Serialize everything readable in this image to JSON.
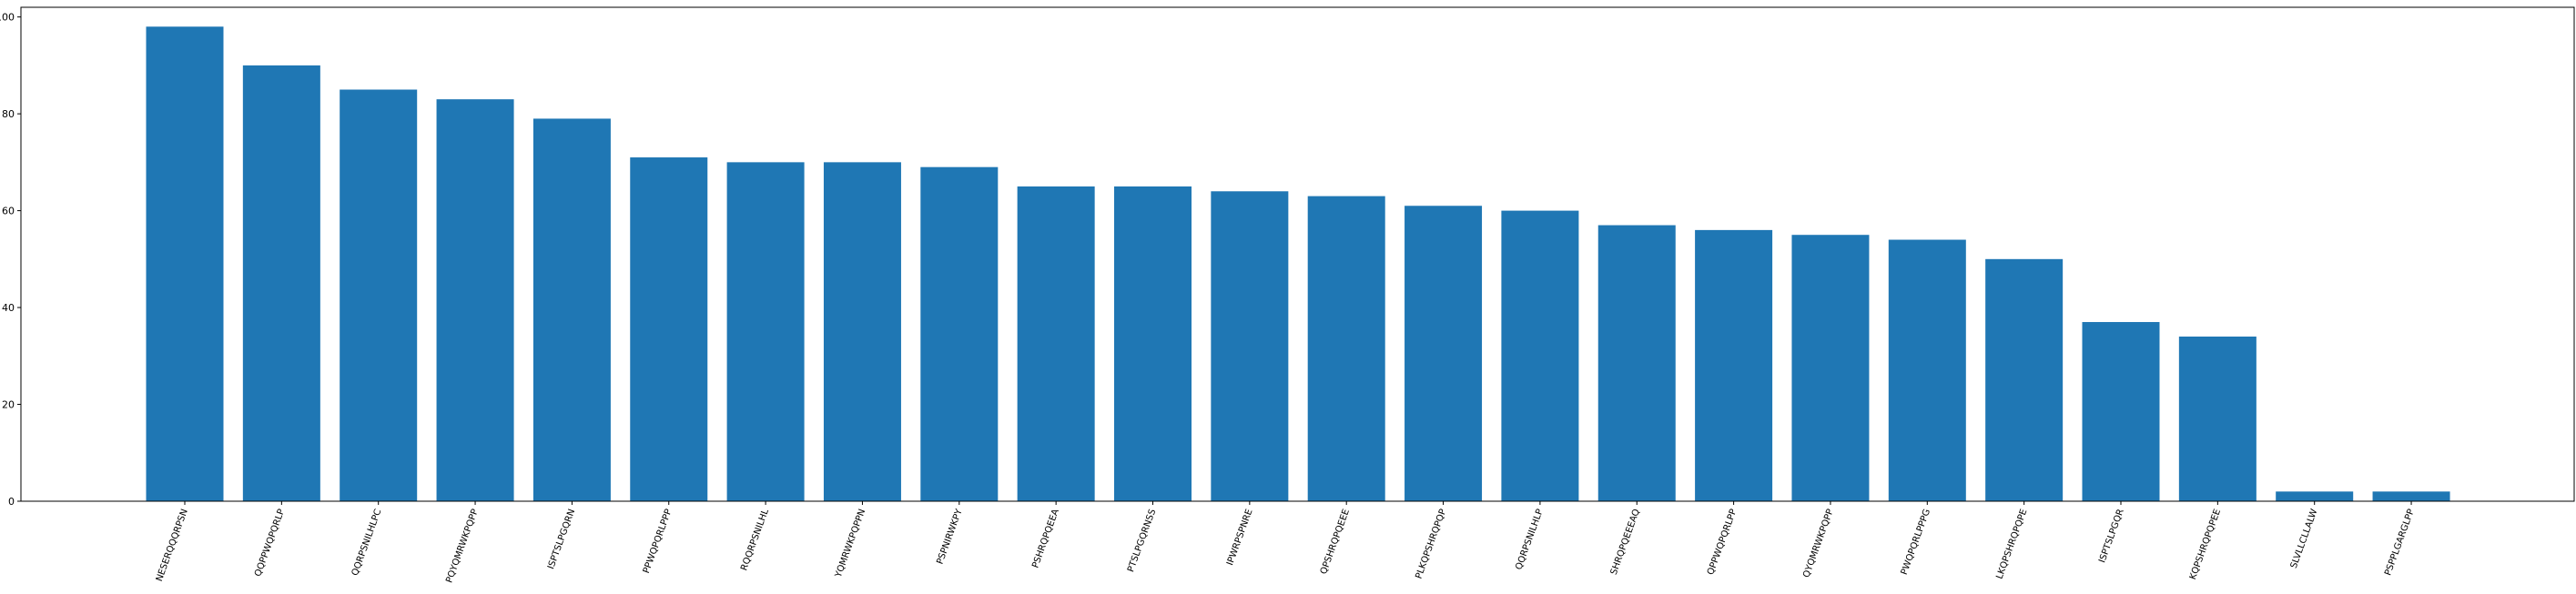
{
  "chart_data": {
    "type": "bar",
    "title": "",
    "xlabel": "",
    "ylabel": "",
    "ylim": [
      0,
      102
    ],
    "yticks": [
      0,
      20,
      40,
      60,
      80,
      100
    ],
    "grid": false,
    "bar_color": "#1f77b4",
    "categories": [
      "NESERQQQRPSN",
      "QQPPWQPQRLP",
      "QQRPSNILHLPC",
      "PQYQMRWKPQPP",
      "ISPTSLPGQRN",
      "PPWQPQRLPPP",
      "RQQRPSNILHL",
      "YQMRWKPQPPN",
      "PSPNIRWKPY",
      "PSHRQPQEEA",
      "PTSLPGQRNSS",
      "IPWRPSPNRE",
      "QPSHRQPQEEE",
      "PLKQPSHRQPQP",
      "QQRPSNILHLP",
      "SHRQPQEEEAQ",
      "QPPWQPQRLPP",
      "QYQMRWKPQPP",
      "PWQPQRLPPPG",
      "LKQPSHRQPQPE",
      "ISPTSLPGQR",
      "KQPSHRQPQPEE",
      "SLVLLCLLALW",
      "PSPPLGARGLPP"
    ],
    "values": [
      98,
      90,
      85,
      83,
      79,
      71,
      70,
      70,
      69,
      65,
      65,
      64,
      63,
      61,
      60,
      57,
      56,
      55,
      54,
      50,
      37,
      34,
      2,
      2
    ]
  }
}
